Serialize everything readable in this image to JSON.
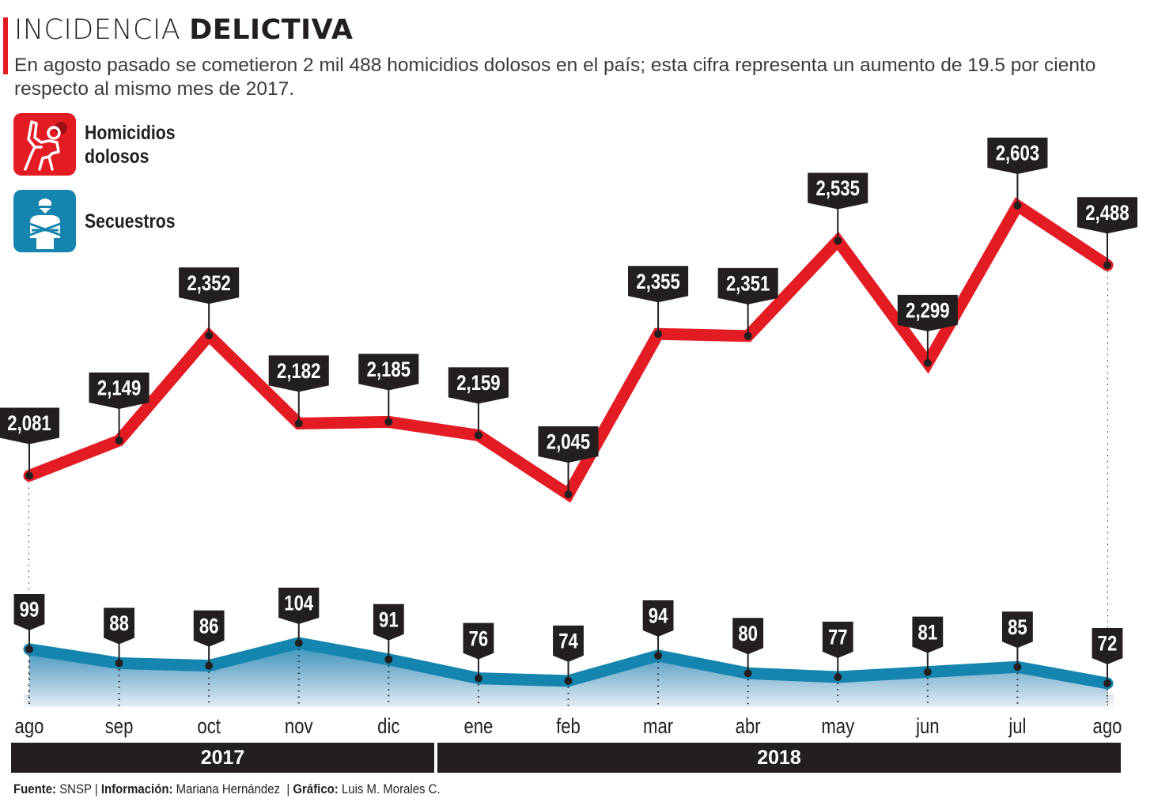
{
  "header": {
    "title_light": "INCIDENCIA",
    "title_bold": "DELICTIVA",
    "subtitle": "En agosto pasado se cometieron 2 mil 488 homicidios dolosos en el país; esta cifra representa un aumento de 19.5 por ciento respecto al mismo mes de 2017.",
    "accent_color": "#e31b23"
  },
  "legend": [
    {
      "label_line1": "Homicidios",
      "label_line2": "dolosos",
      "icon": "crime-scene-body-outline-icon",
      "color": "#e31b23"
    },
    {
      "label_line1": "Secuestros",
      "label_line2": "",
      "icon": "bound-hostage-icon",
      "color": "#1585b0"
    }
  ],
  "years": [
    {
      "label": "2017",
      "months": [
        "ago",
        "sep",
        "oct",
        "nov",
        "dic"
      ]
    },
    {
      "label": "2018",
      "months": [
        "ene",
        "feb",
        "mar",
        "abr",
        "may",
        "jun",
        "jul",
        "ago"
      ]
    }
  ],
  "credits": {
    "source_label": "Fuente:",
    "source_value": "SNSP",
    "info_label": "Información:",
    "info_value": "Mariana Hernández",
    "graphic_label": "Gráfico:",
    "graphic_value": "Luis M. Morales C."
  },
  "chart_data": {
    "type": "area",
    "title": "INCIDENCIA DELICTIVA",
    "xlabel": "",
    "ylabel": "",
    "categories": [
      "ago",
      "sep",
      "oct",
      "nov",
      "dic",
      "ene",
      "feb",
      "mar",
      "abr",
      "may",
      "jun",
      "jul",
      "ago"
    ],
    "category_years": [
      "2017",
      "2017",
      "2017",
      "2017",
      "2017",
      "2018",
      "2018",
      "2018",
      "2018",
      "2018",
      "2018",
      "2018",
      "2018"
    ],
    "grid": false,
    "legend_position": "top-left",
    "series": [
      {
        "name": "Homicidios dolosos",
        "color": "#e31b23",
        "values": [
          2081,
          2149,
          2352,
          2182,
          2185,
          2159,
          2045,
          2355,
          2351,
          2535,
          2299,
          2603,
          2488
        ],
        "labels": [
          "2,081",
          "2,149",
          "2,352",
          "2,182",
          "2,185",
          "2,159",
          "2,045",
          "2,355",
          "2,351",
          "2,535",
          "2,299",
          "2,603",
          "2,488"
        ]
      },
      {
        "name": "Secuestros",
        "color": "#1585b0",
        "values": [
          99,
          88,
          86,
          104,
          91,
          76,
          74,
          94,
          80,
          77,
          81,
          85,
          72
        ],
        "labels": [
          "99",
          "88",
          "86",
          "104",
          "91",
          "76",
          "74",
          "94",
          "80",
          "77",
          "81",
          "85",
          "72"
        ]
      }
    ]
  }
}
